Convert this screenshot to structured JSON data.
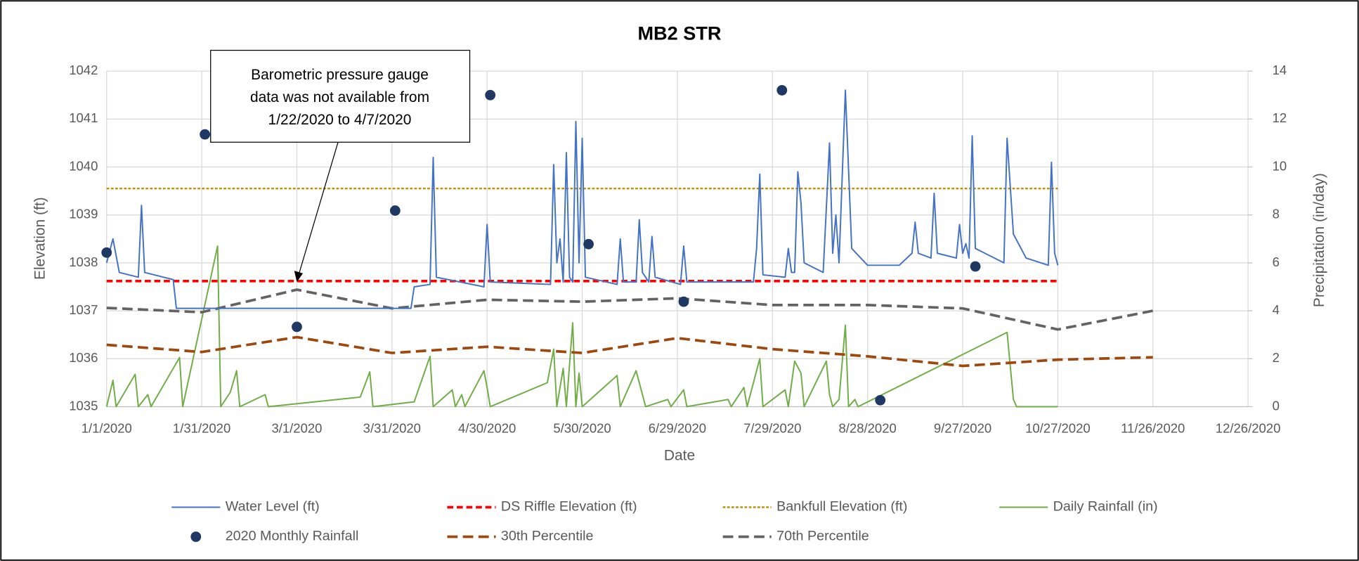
{
  "chart_data": {
    "type": "line",
    "title": "MB2 STR",
    "x_label": "Date",
    "y_label": "Elevation (ft)",
    "y2_label": "Precipitation (in/day)",
    "annotation": {
      "lines": [
        "Barometric pressure gauge",
        "data was not available from",
        "1/22/2020 to 4/7/2020"
      ],
      "x": "3/1/2020",
      "y": 1037.6
    },
    "xlim": [
      "1/1/2020",
      "12/26/2020"
    ],
    "xticks": [
      "1/1/2020",
      "1/31/2020",
      "3/1/2020",
      "3/31/2020",
      "4/30/2020",
      "5/30/2020",
      "6/29/2020",
      "7/29/2020",
      "8/28/2020",
      "9/27/2020",
      "10/27/2020",
      "11/26/2020",
      "12/26/2020"
    ],
    "ylim": [
      1035,
      1042
    ],
    "yticks": [
      1035,
      1036,
      1037,
      1038,
      1039,
      1040,
      1041,
      1042
    ],
    "y2lim": [
      0,
      14
    ],
    "y2ticks": [
      0,
      2,
      4,
      6,
      8,
      10,
      12,
      14
    ],
    "grid": true,
    "legend": "bottom",
    "series": [
      {
        "name": "Water Level (ft)",
        "color": "#4472c4",
        "kind": "solid",
        "x": [
          "1/1/2020",
          "1/3/2020",
          "1/5/2020",
          "1/11/2020",
          "1/12/2020",
          "1/13/2020",
          "1/16/2020",
          "1/22/2020",
          "1/23/2020",
          "4/6/2020",
          "4/7/2020",
          "4/12/2020",
          "4/13/2020",
          "4/14/2020",
          "4/29/2020",
          "4/30/2020",
          "5/1/2020",
          "5/20/2020",
          "5/21/2020",
          "5/22/2020",
          "5/23/2020",
          "5/24/2020",
          "5/25/2020",
          "5/26/2020",
          "5/27/2020",
          "5/28/2020",
          "5/29/2020",
          "5/30/2020",
          "5/31/2020",
          "6/10/2020",
          "6/11/2020",
          "6/12/2020",
          "6/16/2020",
          "6/17/2020",
          "6/18/2020",
          "6/20/2020",
          "6/21/2020",
          "6/22/2020",
          "6/30/2020",
          "7/1/2020",
          "7/2/2020",
          "7/23/2020",
          "7/24/2020",
          "7/25/2020",
          "7/26/2020",
          "8/2/2020",
          "8/3/2020",
          "8/4/2020",
          "8/5/2020",
          "8/6/2020",
          "8/7/2020",
          "8/8/2020",
          "8/14/2020",
          "8/16/2020",
          "8/17/2020",
          "8/18/2020",
          "8/19/2020",
          "8/21/2020",
          "8/23/2020",
          "8/28/2020",
          "9/7/2020",
          "9/11/2020",
          "9/12/2020",
          "9/13/2020",
          "9/17/2020",
          "9/18/2020",
          "9/19/2020",
          "9/25/2020",
          "9/26/2020",
          "9/27/2020",
          "9/28/2020",
          "9/29/2020",
          "9/30/2020",
          "10/1/2020",
          "10/10/2020",
          "10/11/2020",
          "10/13/2020",
          "10/17/2020",
          "10/24/2020",
          "10/25/2020",
          "10/26/2020",
          "10/27/2020"
        ],
        "values": [
          1038.0,
          1038.5,
          1037.8,
          1037.7,
          1039.2,
          1037.8,
          1037.75,
          1037.65,
          1037.05,
          1037.05,
          1037.5,
          1037.55,
          1040.2,
          1037.7,
          1037.5,
          1038.8,
          1037.6,
          1037.55,
          1040.05,
          1038.0,
          1038.5,
          1037.6,
          1040.3,
          1037.7,
          1037.6,
          1040.95,
          1038.0,
          1040.6,
          1037.7,
          1037.55,
          1038.5,
          1037.6,
          1037.6,
          1038.9,
          1037.8,
          1037.6,
          1038.55,
          1037.7,
          1037.55,
          1038.35,
          1037.6,
          1037.6,
          1038.3,
          1039.85,
          1037.75,
          1037.7,
          1038.3,
          1037.8,
          1037.8,
          1039.9,
          1039.25,
          1038.0,
          1037.8,
          1040.5,
          1038.2,
          1039.0,
          1038.0,
          1041.6,
          1038.3,
          1037.95,
          1037.95,
          1038.2,
          1038.85,
          1038.2,
          1038.1,
          1039.45,
          1038.2,
          1038.1,
          1038.8,
          1038.2,
          1038.4,
          1038.1,
          1040.65,
          1038.3,
          1038.0,
          1040.6,
          1038.6,
          1038.1,
          1037.95,
          1040.1,
          1038.2,
          1037.95
        ]
      },
      {
        "name": "DS Riffle Elevation (ft)",
        "color": "#ff0000",
        "kind": "dash",
        "x": [
          "1/1/2020",
          "10/27/2020"
        ],
        "values": [
          1037.62,
          1037.62
        ]
      },
      {
        "name": "Bankfull Elevation (ft)",
        "color": "#bf9000",
        "kind": "dot",
        "x": [
          "1/1/2020",
          "10/27/2020"
        ],
        "values": [
          1039.55,
          1039.55
        ]
      },
      {
        "name": "Daily Rainfall (in)",
        "color": "#70ad47",
        "kind": "solid",
        "axis": "y2",
        "x": [
          "1/1/2020",
          "1/3/2020",
          "1/4/2020",
          "1/10/2020",
          "1/11/2020",
          "1/14/2020",
          "1/15/2020",
          "1/24/2020",
          "1/25/2020",
          "2/5/2020",
          "2/6/2020",
          "2/9/2020",
          "2/11/2020",
          "2/12/2020",
          "2/20/2020",
          "2/21/2020",
          "3/21/2020",
          "3/24/2020",
          "3/25/2020",
          "4/7/2020",
          "4/12/2020",
          "4/13/2020",
          "4/19/2020",
          "4/20/2020",
          "4/22/2020",
          "4/23/2020",
          "4/29/2020",
          "4/30/2020",
          "5/1/2020",
          "5/19/2020",
          "5/21/2020",
          "5/22/2020",
          "5/24/2020",
          "5/25/2020",
          "5/27/2020",
          "5/28/2020",
          "5/29/2020",
          "5/30/2020",
          "6/10/2020",
          "6/11/2020",
          "6/16/2020",
          "6/18/2020",
          "6/19/2020",
          "6/26/2020",
          "6/27/2020",
          "7/1/2020",
          "7/2/2020",
          "7/15/2020",
          "7/16/2020",
          "7/20/2020",
          "7/21/2020",
          "7/25/2020",
          "7/26/2020",
          "8/2/2020",
          "8/3/2020",
          "8/5/2020",
          "8/7/2020",
          "8/8/2020",
          "8/15/2020",
          "8/16/2020",
          "8/17/2020",
          "8/19/2020",
          "8/21/2020",
          "8/22/2020",
          "8/24/2020",
          "8/25/2020",
          "10/11/2020",
          "10/13/2020",
          "10/14/2020",
          "10/27/2020"
        ],
        "values": [
          0,
          1.1,
          0,
          1.35,
          0,
          0.5,
          0,
          2.05,
          0,
          6.7,
          0,
          0.6,
          1.5,
          0,
          0.5,
          0,
          0.4,
          1.45,
          0,
          0.2,
          2.1,
          0,
          0.7,
          0,
          0.5,
          0,
          1.5,
          0.8,
          0,
          1.0,
          2.4,
          0,
          1.6,
          0,
          3.5,
          0,
          1.4,
          0,
          1.3,
          0,
          1.5,
          0.5,
          0,
          0.3,
          0,
          0.7,
          0,
          0.3,
          0,
          0.8,
          0,
          2.0,
          0,
          0.7,
          0,
          1.9,
          1.4,
          0,
          1.9,
          0.5,
          0,
          0.3,
          3.4,
          0,
          0.3,
          0,
          3.1,
          0.3,
          0,
          0
        ]
      },
      {
        "name": "2020 Monthly Rainfall",
        "color": "#1f3864",
        "kind": "marker",
        "axis": "y2",
        "x": [
          "1/1/2020",
          "2/1/2020",
          "3/1/2020",
          "4/1/2020",
          "5/1/2020",
          "6/1/2020",
          "7/1/2020",
          "8/1/2020",
          "9/1/2020",
          "10/1/2020"
        ],
        "values": [
          6.43,
          11.36,
          3.33,
          8.18,
          13.0,
          6.78,
          4.38,
          13.2,
          0.27,
          5.85
        ]
      },
      {
        "name": "30th Percentile",
        "color": "#9e480e",
        "kind": "longdash",
        "x": [
          "1/1/2020",
          "1/31/2020",
          "3/1/2020",
          "3/31/2020",
          "4/30/2020",
          "5/30/2020",
          "6/29/2020",
          "7/29/2020",
          "8/28/2020",
          "9/27/2020",
          "10/27/2020",
          "11/26/2020"
        ],
        "values": [
          1036.29,
          1036.14,
          1036.45,
          1036.12,
          1036.25,
          1036.12,
          1036.43,
          1036.2,
          1036.05,
          1035.85,
          1035.98,
          1036.03
        ]
      },
      {
        "name": "70th Percentile",
        "color": "#636363",
        "kind": "longdash",
        "x": [
          "1/1/2020",
          "1/31/2020",
          "3/1/2020",
          "3/31/2020",
          "4/30/2020",
          "5/30/2020",
          "6/29/2020",
          "7/29/2020",
          "8/28/2020",
          "9/27/2020",
          "10/27/2020",
          "11/26/2020"
        ],
        "values": [
          1037.06,
          1036.97,
          1037.44,
          1037.05,
          1037.23,
          1037.19,
          1037.26,
          1037.12,
          1037.12,
          1037.05,
          1036.61,
          1037.0
        ]
      }
    ]
  }
}
